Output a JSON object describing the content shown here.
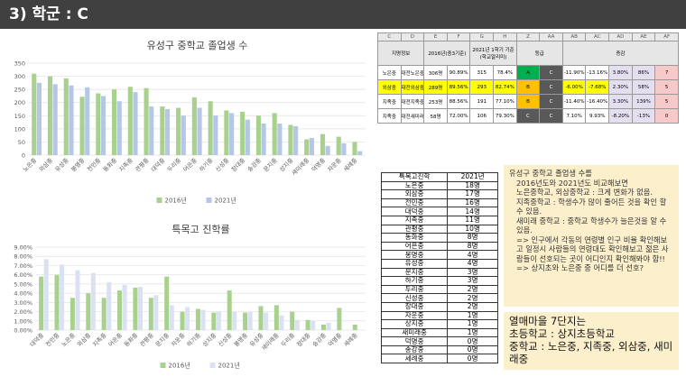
{
  "header": {
    "title": "3) 학군 : C"
  },
  "chart_data": [
    {
      "type": "bar",
      "title": "유성구 중학교 졸업생 수",
      "categories": [
        "노은중",
        "외삼중",
        "유성중",
        "봉명중",
        "전민중",
        "동화중",
        "지족중",
        "관평중",
        "대덕중",
        "두리중",
        "어은중",
        "하기중",
        "신성중",
        "장대중",
        "송강중",
        "문지중",
        "상지중",
        "새미래중",
        "덕명중",
        "자운중",
        "세례중"
      ],
      "series": [
        {
          "name": "2016년",
          "color": "#a9d18e",
          "values": [
            310,
            300,
            292,
            222,
            235,
            250,
            260,
            255,
            185,
            180,
            220,
            205,
            170,
            165,
            150,
            160,
            115,
            60,
            80,
            70,
            50
          ]
        },
        {
          "name": "2021년",
          "color": "#b4c7e7",
          "values": [
            275,
            270,
            265,
            258,
            225,
            205,
            240,
            185,
            175,
            150,
            180,
            150,
            160,
            135,
            120,
            120,
            110,
            65,
            35,
            45,
            15
          ]
        }
      ],
      "ylim": [
        0,
        350
      ],
      "yticks": [
        0,
        50,
        100,
        150,
        200,
        250,
        300,
        350
      ],
      "grid": true,
      "legend": "bottom"
    },
    {
      "type": "bar",
      "title": "특목고 진학률",
      "categories": [
        "대덕중",
        "전민중",
        "노은중",
        "외삼중",
        "지족중",
        "어은중",
        "동화중",
        "관평중",
        "문지중",
        "자운중",
        "하기중",
        "상지중",
        "신성중",
        "봉명중",
        "유성중",
        "새미래중",
        "두리중",
        "장대중",
        "송강중",
        "덕명중",
        "세례중"
      ],
      "series": [
        {
          "name": "2016년",
          "color": "#a9d18e",
          "values": [
            5.8,
            6.0,
            3.5,
            4.0,
            3.5,
            4.3,
            4.6,
            3.5,
            5.8,
            2.0,
            2.3,
            1.9,
            4.3,
            1.9,
            2.6,
            2.7,
            2.0,
            1.1,
            0.6,
            2.4,
            0.6
          ]
        },
        {
          "name": "2021년",
          "color": "#d9e1f2",
          "values": [
            7.7,
            7.1,
            6.5,
            6.2,
            5.2,
            4.9,
            4.7,
            3.8,
            2.7,
            2.5,
            2.2,
            2.0,
            2.0,
            2.0,
            1.9,
            1.6,
            1.1,
            1.0,
            0.8,
            0,
            0
          ]
        }
      ],
      "ylim": [
        0,
        9
      ],
      "yticks": [
        {
          "value": 0,
          "label": "0.00%"
        },
        {
          "value": 1,
          "label": "1.00%"
        },
        {
          "value": 2,
          "label": "2.00%"
        },
        {
          "value": 3,
          "label": "3.00%"
        },
        {
          "value": 4,
          "label": "4.00%"
        },
        {
          "value": 5,
          "label": "5.00%"
        },
        {
          "value": 6,
          "label": "6.00%"
        },
        {
          "value": 7,
          "label": "7.00%"
        },
        {
          "value": 8,
          "label": "8.00%"
        },
        {
          "value": 9,
          "label": "9.00%"
        }
      ],
      "grid": true,
      "legend": "bottom"
    }
  ],
  "spreadsheet": {
    "columns": [
      "C",
      "D",
      "E",
      "F",
      "G",
      "H",
      "Z",
      "AA",
      "AB",
      "AC",
      "AD",
      "AE",
      "AF"
    ],
    "headers": [
      "지명정보",
      "2016년(중3기준)",
      "2021년 1학기 기준(학교알리미)",
      "등급",
      "증감"
    ],
    "rows": [
      [
        "노은중",
        "대전노은중학교",
        "306명",
        "90.89%",
        "315",
        "78.4%",
        "A",
        "C",
        "-11.90%",
        "-13.16%",
        "3.80%",
        "86%",
        "7"
      ],
      [
        "외삼중",
        "대전외삼중학교",
        "289명",
        "89.56%",
        "293",
        "82.74%",
        "B",
        "C",
        "-6.00%",
        "-7.68%",
        "2.30%",
        "58%",
        "5"
      ],
      [
        "지족중",
        "대전지족중학교",
        "253명",
        "88.56%",
        "191",
        "77.10%",
        "B",
        "C",
        "-11.40%",
        "-16.40%",
        "3.30%",
        "139%",
        "5"
      ],
      [
        "지족중",
        "대전새미래중학교",
        "58명",
        "72.00%",
        "106",
        "79.30%",
        "C",
        "C",
        "7.10%",
        "9.93%",
        "-8.20%",
        "-13%",
        "0"
      ]
    ]
  },
  "table": {
    "headers": [
      "특목고진학",
      "2021년"
    ],
    "rows": [
      [
        "노은중",
        "18명"
      ],
      [
        "외삼중",
        "17명"
      ],
      [
        "전민중",
        "16명"
      ],
      [
        "대덕중",
        "14명"
      ],
      [
        "지족중",
        "11명"
      ],
      [
        "관평중",
        "10명"
      ],
      [
        "동화중",
        "8명"
      ],
      [
        "어은중",
        "8명"
      ],
      [
        "봉명중",
        "4명"
      ],
      [
        "유성중",
        "4명"
      ],
      [
        "문지중",
        "3명"
      ],
      [
        "하기중",
        "3명"
      ],
      [
        "두리중",
        "2명"
      ],
      [
        "신성중",
        "2명"
      ],
      [
        "장대중",
        "2명"
      ],
      [
        "자운중",
        "1명"
      ],
      [
        "상지중",
        "1명"
      ],
      [
        "새미래중",
        "1명"
      ],
      [
        "덕명중",
        "0명"
      ],
      [
        "송강중",
        "0명"
      ],
      [
        "세례중",
        "0명"
      ]
    ]
  },
  "notes": {
    "lines": [
      "유성구 중학교 졸업생 수를",
      "2016년도와 2021년도 비교해보면",
      "노은중학교, 외삼중학교 : 크게 변화가 없음.",
      "지족중학교 : 학생수가 많이 줄어든 것을 확인 할 수 있음.",
      "새미래 중학교 : 중학교 학생수가 늘은것을 알 수 있음.",
      "=> 인구에서 각동의 연령별 인구 비율 확인해보고 일정시 사람들의 연령대도 확인해보고 젊은 사람들이 선호되는 곳이 어디인지 확인해봐야 함!!",
      "=> 상지초와 노은중 중 어디를 더 선호?"
    ]
  },
  "summary": {
    "title": "열매마을 7단지는",
    "lines": [
      "초등학교 : 상지초등학교",
      "중학교 : 노은중, 지족중, 외삼중, 새미래중"
    ]
  }
}
